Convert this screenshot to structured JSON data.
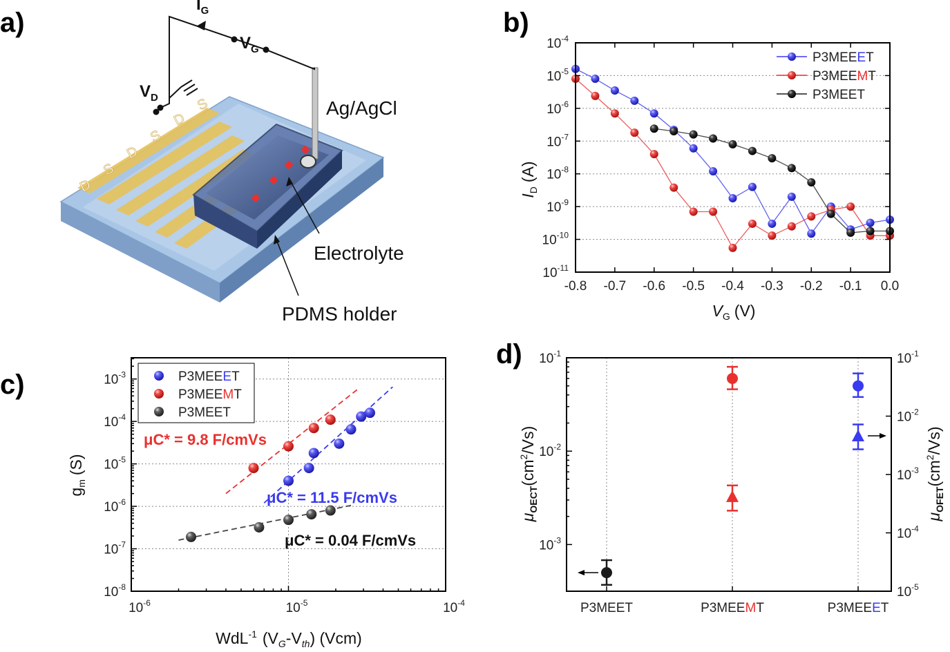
{
  "panels": {
    "a": "a)",
    "b": "b)",
    "c": "c)",
    "d": "d)"
  },
  "schematic": {
    "ig": "I",
    "ig_sub": "G",
    "vg": "V",
    "vg_sub": "G",
    "vd": "V",
    "vd_sub": "D",
    "electrode_labels": [
      "D",
      "S",
      "D",
      "S",
      "D",
      "S"
    ],
    "callouts": [
      "Ag/AgCl",
      "Electrolyte",
      "PDMS holder"
    ]
  },
  "colors": {
    "P3MEEET": "#1a1a1a",
    "P3MEEMT": "#e8312f",
    "P3MEEET_blue": "#3a3af0",
    "gold": "#e6c15a"
  },
  "chart_data": [
    {
      "id": "b",
      "type": "line",
      "xlabel": "V",
      "xlabel_sub": "G",
      "xlabel_unit": "(V)",
      "ylabel": "I",
      "ylabel_sub": "D",
      "ylabel_unit": "(A)",
      "xlim": [
        -0.8,
        0.0
      ],
      "ylim_log10": [
        -11,
        -4
      ],
      "log_y": true,
      "grid": true,
      "legend_position": "top-right",
      "x_ticks": [
        "-0.8",
        "-0.7",
        "-0.6",
        "-0.5",
        "-0.4",
        "-0.3",
        "-0.2",
        "-0.1",
        "0.0"
      ],
      "y_ticks": [
        "-4",
        "-5",
        "-6",
        "-7",
        "-8",
        "-9",
        "-10",
        "-11"
      ],
      "series": [
        {
          "name_parts": [
            "P3MEE",
            "E",
            "T"
          ],
          "color": "#3a3af0",
          "x": [
            -0.8,
            -0.75,
            -0.7,
            -0.65,
            -0.6,
            -0.55,
            -0.5,
            -0.45,
            -0.4,
            -0.35,
            -0.3,
            -0.25,
            -0.2,
            -0.15,
            -0.1,
            -0.05,
            0.0
          ],
          "y": [
            1.6e-05,
            8e-06,
            3.5e-06,
            1.7e-06,
            7e-07,
            2.2e-07,
            6e-08,
            1.2e-08,
            1.8e-09,
            4e-09,
            3e-10,
            2e-09,
            1.5e-10,
            1e-09,
            2e-10,
            3.2e-10,
            4e-10
          ]
        },
        {
          "name_parts": [
            "P3MEE",
            "M",
            "T"
          ],
          "color": "#e8312f",
          "x": [
            -0.8,
            -0.75,
            -0.7,
            -0.65,
            -0.6,
            -0.55,
            -0.5,
            -0.45,
            -0.4,
            -0.35,
            -0.3,
            -0.25,
            -0.2,
            -0.15,
            -0.1,
            -0.05,
            0.0
          ],
          "y": [
            8e-06,
            2.4e-06,
            7e-07,
            1.8e-07,
            4e-08,
            3.8e-09,
            7e-10,
            7e-10,
            5.5e-11,
            3e-10,
            1.3e-10,
            2.5e-10,
            5e-10,
            8e-10,
            1e-09,
            1.3e-10,
            1.3e-10
          ]
        },
        {
          "name_parts": [
            "P3MEET",
            "",
            ""
          ],
          "color": "#1a1a1a",
          "x": [
            -0.6,
            -0.55,
            -0.5,
            -0.45,
            -0.4,
            -0.35,
            -0.3,
            -0.25,
            -0.2,
            -0.15,
            -0.1,
            -0.05,
            0.0
          ],
          "y": [
            2.4e-07,
            2e-07,
            1.6e-07,
            1.2e-07,
            8e-08,
            5e-08,
            3e-08,
            1.5e-08,
            5.5e-09,
            6e-10,
            1.6e-10,
            1.8e-10,
            1.8e-10
          ]
        }
      ]
    },
    {
      "id": "c",
      "type": "scatter",
      "xlabel": "WdL",
      "xlabel_sup": "-1",
      "xlabel_rest": "(V",
      "xlabel_g": "G",
      "xlabel_minus": "-V",
      "xlabel_th": "th",
      "xlabel_unit": ") (Vcm)",
      "ylabel": "g",
      "ylabel_sub": "m",
      "ylabel_unit": "(S)",
      "log_x": true,
      "log_y": true,
      "xlim_log10": [
        -6,
        -4
      ],
      "ylim_log10": [
        -8,
        -2.5
      ],
      "grid": true,
      "legend_position": "top-left",
      "x_ticks": [
        "-6",
        "-5",
        "-4"
      ],
      "y_ticks": [
        "-3",
        "-4",
        "-5",
        "-6",
        "-7",
        "-8"
      ],
      "series": [
        {
          "name_parts": [
            "P3MEE",
            "E",
            "T"
          ],
          "color": "#3a3af0",
          "x": [
            1e-05,
            1.35e-05,
            1.45e-05,
            2.1e-05,
            2.5e-05,
            2.9e-05,
            3.3e-05
          ],
          "y": [
            4e-06,
            8e-06,
            1.8e-05,
            3e-05,
            6.5e-05,
            0.00013,
            0.00016
          ],
          "fit_x": [
            7e-06,
            4.6e-05
          ],
          "fit_y": [
            1.2e-06,
            0.00065
          ]
        },
        {
          "name_parts": [
            "P3MEE",
            "M",
            "T"
          ],
          "color": "#e8312f",
          "x": [
            6e-06,
            1e-05,
            1.45e-05,
            1.85e-05
          ],
          "y": [
            8e-06,
            2.6e-05,
            7e-05,
            0.00011
          ],
          "fit_x": [
            4e-06,
            2.8e-05
          ],
          "fit_y": [
            2e-06,
            0.0006
          ]
        },
        {
          "name_parts": [
            "P3MEET",
            "",
            ""
          ],
          "color": "#444444",
          "x": [
            2.4e-06,
            6.5e-06,
            1e-05,
            1.4e-05,
            1.85e-05
          ],
          "y": [
            1.9e-07,
            3.2e-07,
            4.8e-07,
            6.5e-07,
            8e-07
          ],
          "fit_x": [
            2e-06,
            2.5e-05
          ],
          "fit_y": [
            1.6e-07,
            1.05e-06
          ]
        }
      ],
      "annotations": [
        {
          "text": "μC* = 9.8 F/cmVs",
          "color": "#e8312f"
        },
        {
          "text": "μC* = 11.5 F/cmVs",
          "color": "#3a3af0"
        },
        {
          "text": "μC* = 0.04 F/cmVs",
          "color": "#111111"
        }
      ]
    },
    {
      "id": "d",
      "type": "scatter",
      "categories": [
        "P3MEET",
        "P3MEEMT",
        "P3MEEET"
      ],
      "category_parts": [
        [
          "P3MEET",
          "",
          ""
        ],
        [
          "P3MEE",
          "M",
          "T"
        ],
        [
          "P3MEE",
          "E",
          "T"
        ]
      ],
      "category_colors": [
        "#1a1a1a",
        "#e8312f",
        "#3a3af0"
      ],
      "ylabel_left": "μ",
      "ylabel_left_sub": "OECT",
      "ylabel_left_unit": "(cm",
      "ylabel_left_sup": "2",
      "ylabel_left_rest": "/Vs)",
      "ylabel_right": "μ",
      "ylabel_right_sub": "OFET",
      "ylabel_right_unit": "(cm",
      "ylabel_right_sup": "2",
      "ylabel_right_rest": "/Vs)",
      "log_y": true,
      "ylim_left_log10": [
        -3.5,
        -1
      ],
      "ylim_right_log10": [
        -5,
        -1
      ],
      "left_ticks": [
        "-1",
        "-2",
        "-3"
      ],
      "right_ticks": [
        "-1",
        "-2",
        "-3",
        "-4",
        "-5"
      ],
      "oect": {
        "values": [
          0.0005,
          0.06,
          0.05
        ],
        "err_low": [
          0.00037,
          0.046,
          0.038
        ],
        "err_high": [
          0.00068,
          0.08,
          0.068
        ],
        "axis": "left"
      },
      "ofet": {
        "values": [
          null,
          0.00042,
          0.0046
        ],
        "err_low": [
          null,
          0.00024,
          0.0027
        ],
        "err_high": [
          null,
          0.00065,
          0.0072
        ],
        "axis": "right"
      }
    }
  ]
}
